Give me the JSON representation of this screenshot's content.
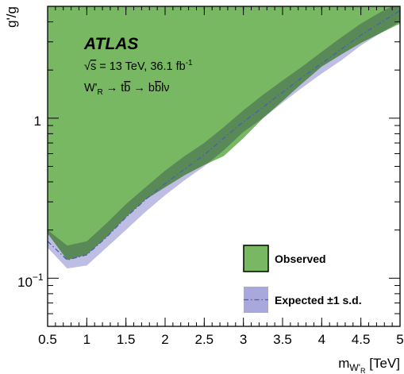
{
  "chart_data": {
    "type": "area",
    "xlabel": "m",
    "xlabel_sub": "W'",
    "xlabel_subsub": "R",
    "xlabel_unit": " [TeV]",
    "ylabel": "g'/g",
    "xlim": [
      0.5,
      5.0
    ],
    "ylim": [
      0.05,
      5.0
    ],
    "yscale": "log",
    "x_ticks": [
      0.5,
      1,
      1.5,
      2,
      2.5,
      3,
      3.5,
      4,
      4.5,
      5
    ],
    "x_tick_labels": [
      "0.5",
      "1",
      "1.5",
      "2",
      "2.5",
      "3",
      "3.5",
      "4",
      "4.5",
      "5"
    ],
    "y_tick_labels": {
      "one": "1",
      "tenth_base": "10",
      "tenth_exp": "−1"
    },
    "atlas_label": "ATLAS",
    "energy_line": {
      "sqrt": "√",
      "s": "s",
      "text": " = 13 TeV, 36.1 fb",
      "sup": "-1"
    },
    "process_line": {
      "w": "W'",
      "w_sub": "R",
      "text": " → t",
      "bbar1": "b",
      "mid": " → b",
      "bbar2": "b",
      "tail": "lν"
    },
    "legend": {
      "observed": "Observed",
      "expected": "Expected ±1 s.d.",
      "placement": "bottom-right"
    },
    "colors": {
      "observed_fill": "#78b862",
      "expected_band": "#a8a8dc",
      "expected_line": "#4a5fb0",
      "overlap": "#3f7e68"
    },
    "observed": {
      "x": [
        0.5,
        0.75,
        1.0,
        1.25,
        1.5,
        1.75,
        2.0,
        2.25,
        2.5,
        2.75,
        3.0,
        3.25,
        3.5,
        3.75,
        4.0,
        4.25,
        4.5,
        4.75,
        5.0
      ],
      "low": [
        0.19,
        0.13,
        0.14,
        0.18,
        0.24,
        0.31,
        0.37,
        0.44,
        0.51,
        0.58,
        0.75,
        1.0,
        1.28,
        1.65,
        2.1,
        2.5,
        2.95,
        3.4,
        3.9
      ],
      "high": 5.0
    },
    "expected": {
      "x": [
        0.5,
        0.75,
        1.0,
        1.25,
        1.5,
        1.75,
        2.0,
        2.25,
        2.5,
        2.75,
        3.0,
        3.25,
        3.5,
        3.75,
        4.0,
        4.25,
        4.5,
        4.75,
        5.0
      ],
      "median": [
        0.17,
        0.13,
        0.14,
        0.18,
        0.24,
        0.31,
        0.39,
        0.48,
        0.59,
        0.75,
        0.95,
        1.17,
        1.45,
        1.8,
        2.2,
        2.7,
        3.3,
        3.95,
        4.7
      ],
      "minus1": [
        0.155,
        0.115,
        0.12,
        0.155,
        0.2,
        0.26,
        0.33,
        0.41,
        0.5,
        0.63,
        0.82,
        1.0,
        1.25,
        1.55,
        1.9,
        2.3,
        2.85,
        3.4,
        4.0
      ],
      "plus1": [
        0.2,
        0.16,
        0.17,
        0.22,
        0.29,
        0.37,
        0.47,
        0.58,
        0.7,
        0.88,
        1.12,
        1.4,
        1.72,
        2.1,
        2.6,
        3.2,
        3.9,
        4.6,
        5.3
      ]
    }
  }
}
